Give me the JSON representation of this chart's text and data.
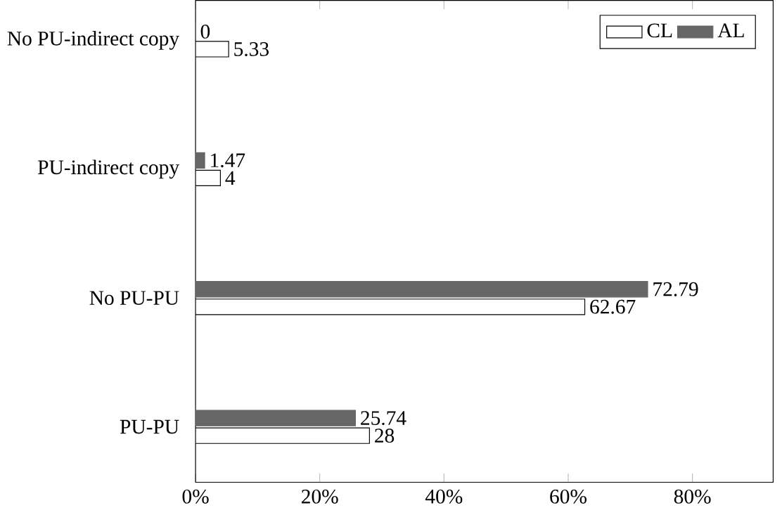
{
  "chart_data": {
    "type": "bar",
    "orientation": "horizontal",
    "categories": [
      "No PU-indirect copy",
      "PU-indirect copy",
      "No PU-PU",
      "PU-PU"
    ],
    "series": [
      {
        "name": "CL",
        "color": "#ffffff",
        "values": [
          5.33,
          4,
          62.67,
          28
        ]
      },
      {
        "name": "AL",
        "color": "#666666",
        "values": [
          0,
          1.47,
          72.79,
          25.74
        ]
      }
    ],
    "xlim": [
      0,
      93
    ],
    "xticks": [
      {
        "value": 0,
        "label": "0%"
      },
      {
        "value": 20,
        "label": "20%"
      },
      {
        "value": 40,
        "label": "40%"
      },
      {
        "value": 60,
        "label": "60%"
      },
      {
        "value": 80,
        "label": "80%"
      }
    ],
    "legend": "top right",
    "data_labels": true
  }
}
